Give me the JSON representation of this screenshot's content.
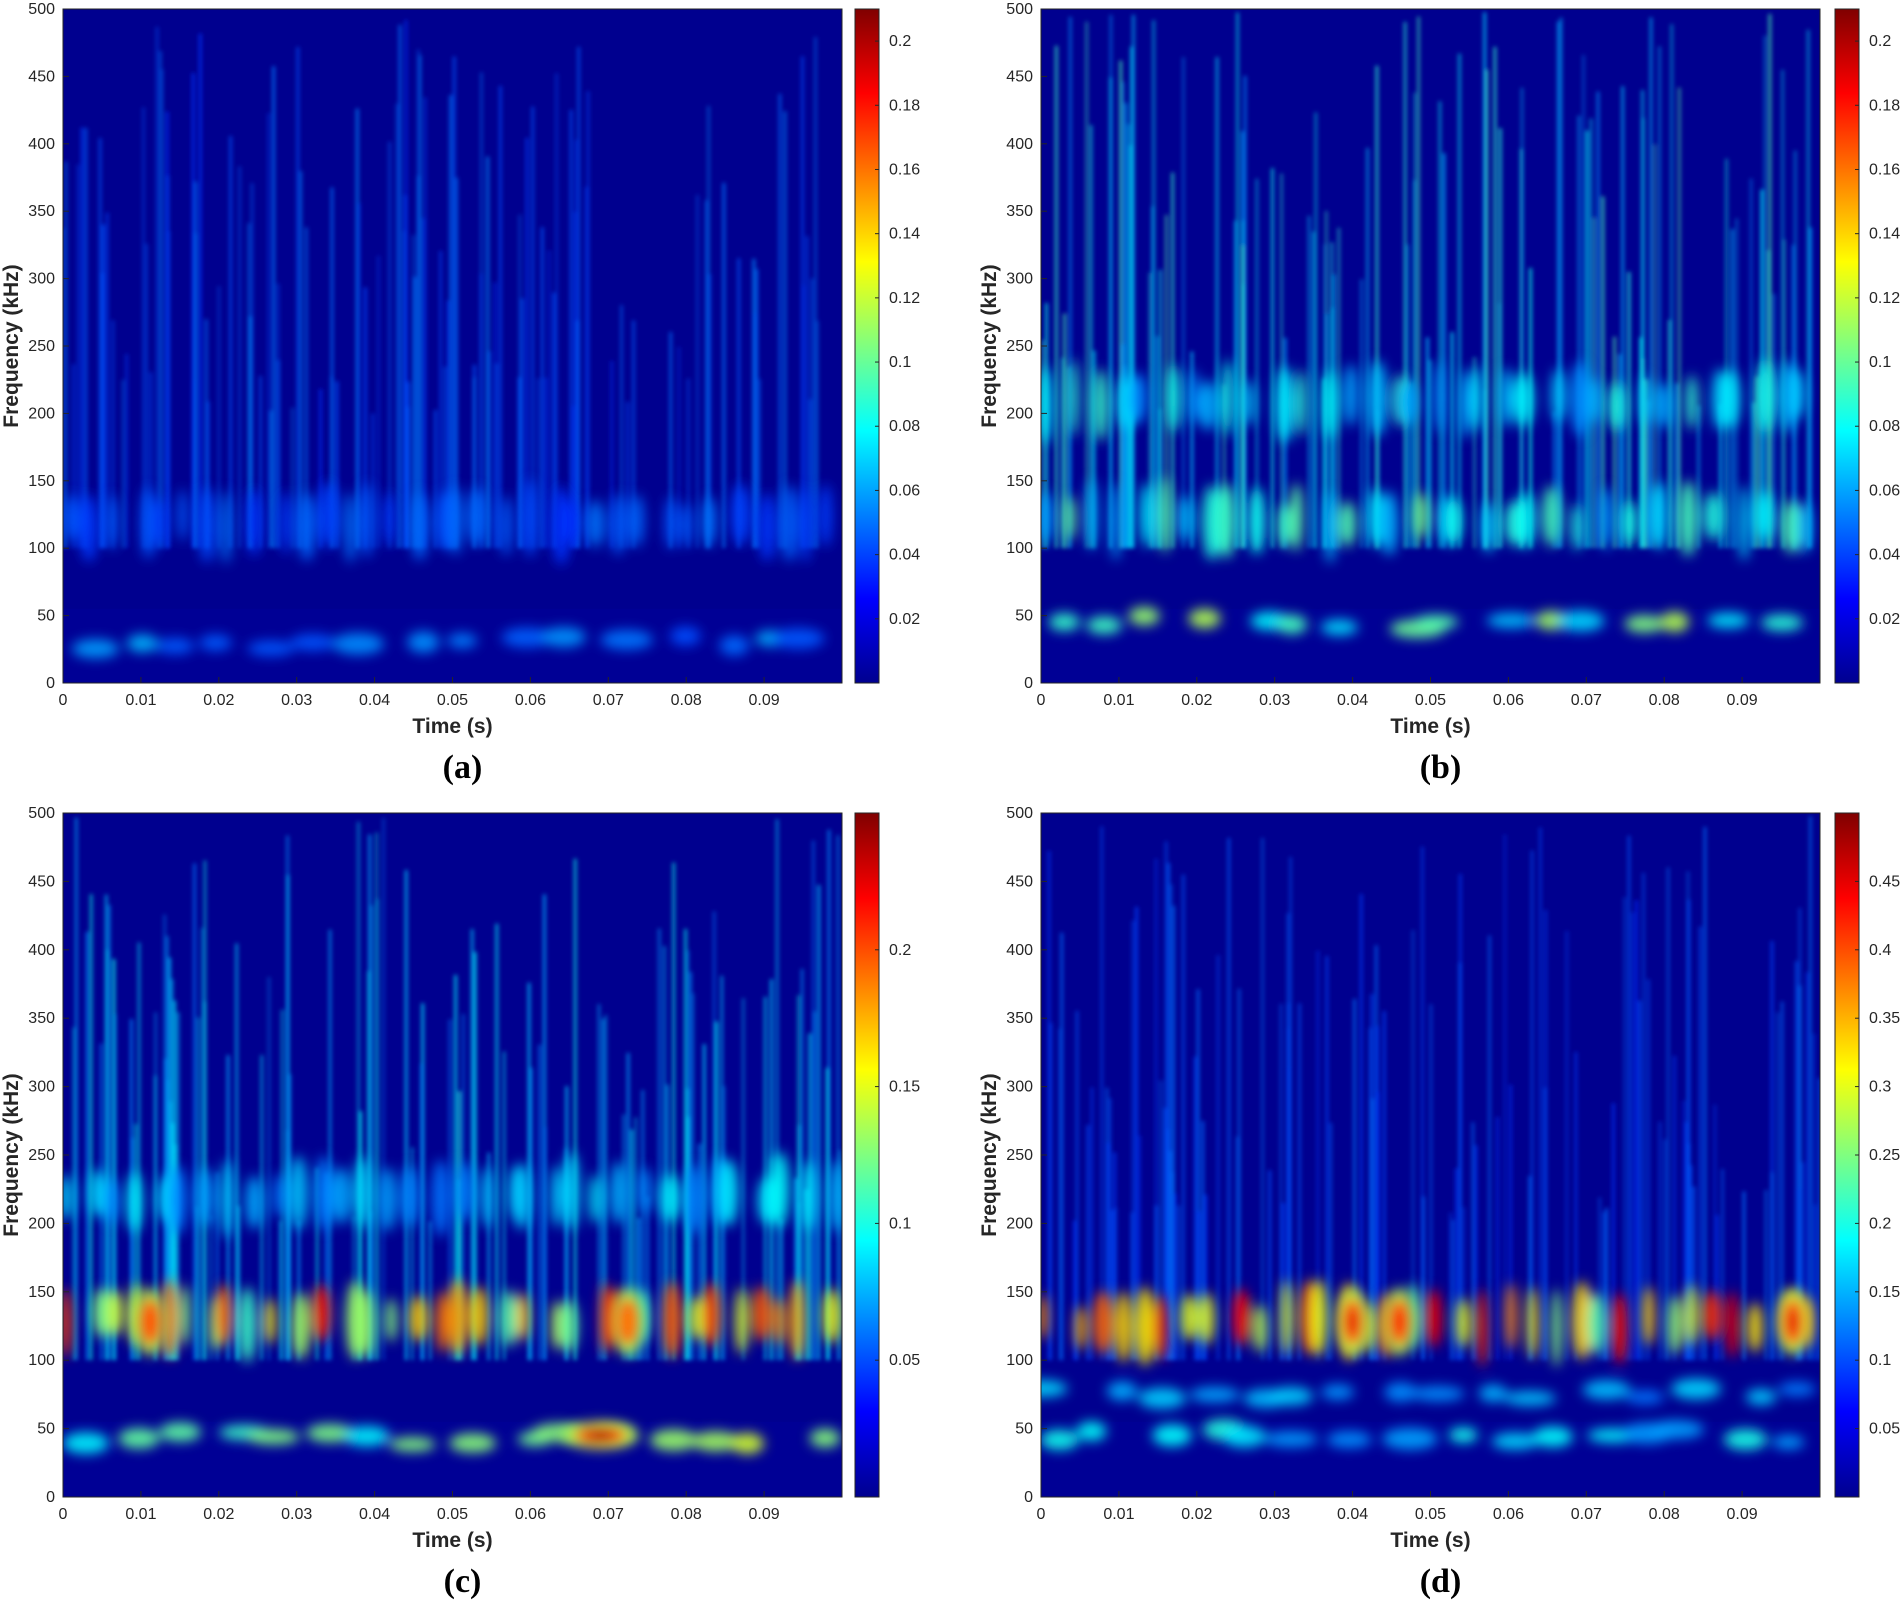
{
  "chart_data": [
    {
      "type": "heatmap",
      "panel_label": "(a)",
      "xlabel": "Time (s)",
      "ylabel": "Frequency (kHz)",
      "xlim": [
        0,
        0.1
      ],
      "ylim": [
        0,
        500
      ],
      "xticks": [
        "0",
        "0.01",
        "0.02",
        "0.03",
        "0.04",
        "0.05",
        "0.06",
        "0.07",
        "0.08",
        "0.09"
      ],
      "yticks": [
        "0",
        "50",
        "100",
        "150",
        "200",
        "250",
        "300",
        "350",
        "400",
        "450",
        "500"
      ],
      "colormap": "jet",
      "clim": [
        0,
        0.21
      ],
      "colorbar_ticks": [
        "0.02",
        "0.04",
        "0.06",
        "0.08",
        "0.1",
        "0.12",
        "0.14",
        "0.16",
        "0.18",
        "0.2"
      ],
      "bands": [
        {
          "freq_khz": 30,
          "intensity": 0.03
        },
        {
          "freq_khz": 120,
          "intensity": 0.02
        }
      ]
    },
    {
      "type": "heatmap",
      "panel_label": "(b)",
      "xlabel": "Time (s)",
      "ylabel": "Frequency (kHz)",
      "xlim": [
        0,
        0.1
      ],
      "ylim": [
        0,
        500
      ],
      "xticks": [
        "0",
        "0.01",
        "0.02",
        "0.03",
        "0.04",
        "0.05",
        "0.06",
        "0.07",
        "0.08",
        "0.09"
      ],
      "yticks": [
        "0",
        "50",
        "100",
        "150",
        "200",
        "250",
        "300",
        "350",
        "400",
        "450",
        "500"
      ],
      "colormap": "jet",
      "clim": [
        0,
        0.21
      ],
      "colorbar_ticks": [
        "0.02",
        "0.04",
        "0.06",
        "0.08",
        "0.1",
        "0.12",
        "0.14",
        "0.16",
        "0.18",
        "0.2"
      ],
      "bands": [
        {
          "freq_khz": 45,
          "intensity": 0.07
        },
        {
          "freq_khz": 120,
          "intensity": 0.06
        },
        {
          "freq_khz": 210,
          "intensity": 0.05
        }
      ]
    },
    {
      "type": "heatmap",
      "panel_label": "(c)",
      "xlabel": "Time (s)",
      "ylabel": "Frequency (kHz)",
      "xlim": [
        0,
        0.1
      ],
      "ylim": [
        0,
        500
      ],
      "xticks": [
        "0",
        "0.01",
        "0.02",
        "0.03",
        "0.04",
        "0.05",
        "0.06",
        "0.07",
        "0.08",
        "0.09"
      ],
      "yticks": [
        "0",
        "50",
        "100",
        "150",
        "200",
        "250",
        "300",
        "350",
        "400",
        "450",
        "500"
      ],
      "colormap": "jet",
      "clim": [
        0,
        0.25
      ],
      "colorbar_ticks": [
        "0.05",
        "0.1",
        "0.15",
        "0.2"
      ],
      "bands": [
        {
          "freq_khz": 43,
          "intensity": 0.1
        },
        {
          "freq_khz": 130,
          "intensity": 0.14
        },
        {
          "freq_khz": 220,
          "intensity": 0.05
        }
      ],
      "hotspots": [
        {
          "time_s": 0.0112,
          "freq_khz": 128,
          "value": 0.2
        },
        {
          "time_s": 0.069,
          "freq_khz": 45,
          "value": 0.24
        },
        {
          "time_s": 0.0725,
          "freq_khz": 128,
          "value": 0.19
        }
      ]
    },
    {
      "type": "heatmap",
      "panel_label": "(d)",
      "xlabel": "Time (s)",
      "ylabel": "Frequency (kHz)",
      "xlim": [
        0,
        0.1
      ],
      "ylim": [
        0,
        500
      ],
      "xticks": [
        "0",
        "0.01",
        "0.02",
        "0.03",
        "0.04",
        "0.05",
        "0.06",
        "0.07",
        "0.08",
        "0.09"
      ],
      "yticks": [
        "0",
        "50",
        "100",
        "150",
        "200",
        "250",
        "300",
        "350",
        "400",
        "450",
        "500"
      ],
      "colormap": "jet",
      "clim": [
        0,
        0.5
      ],
      "colorbar_ticks": [
        "0.05",
        "0.1",
        "0.15",
        "0.2",
        "0.25",
        "0.3",
        "0.35",
        "0.4",
        "0.45"
      ],
      "bands": [
        {
          "freq_khz": 45,
          "intensity": 0.12
        },
        {
          "freq_khz": 75,
          "intensity": 0.1
        },
        {
          "freq_khz": 128,
          "intensity": 0.3
        }
      ],
      "hotspots": [
        {
          "time_s": 0.04,
          "freq_khz": 128,
          "value": 0.45
        },
        {
          "time_s": 0.046,
          "freq_khz": 128,
          "value": 0.44
        },
        {
          "time_s": 0.0965,
          "freq_khz": 128,
          "value": 0.45
        }
      ]
    }
  ]
}
